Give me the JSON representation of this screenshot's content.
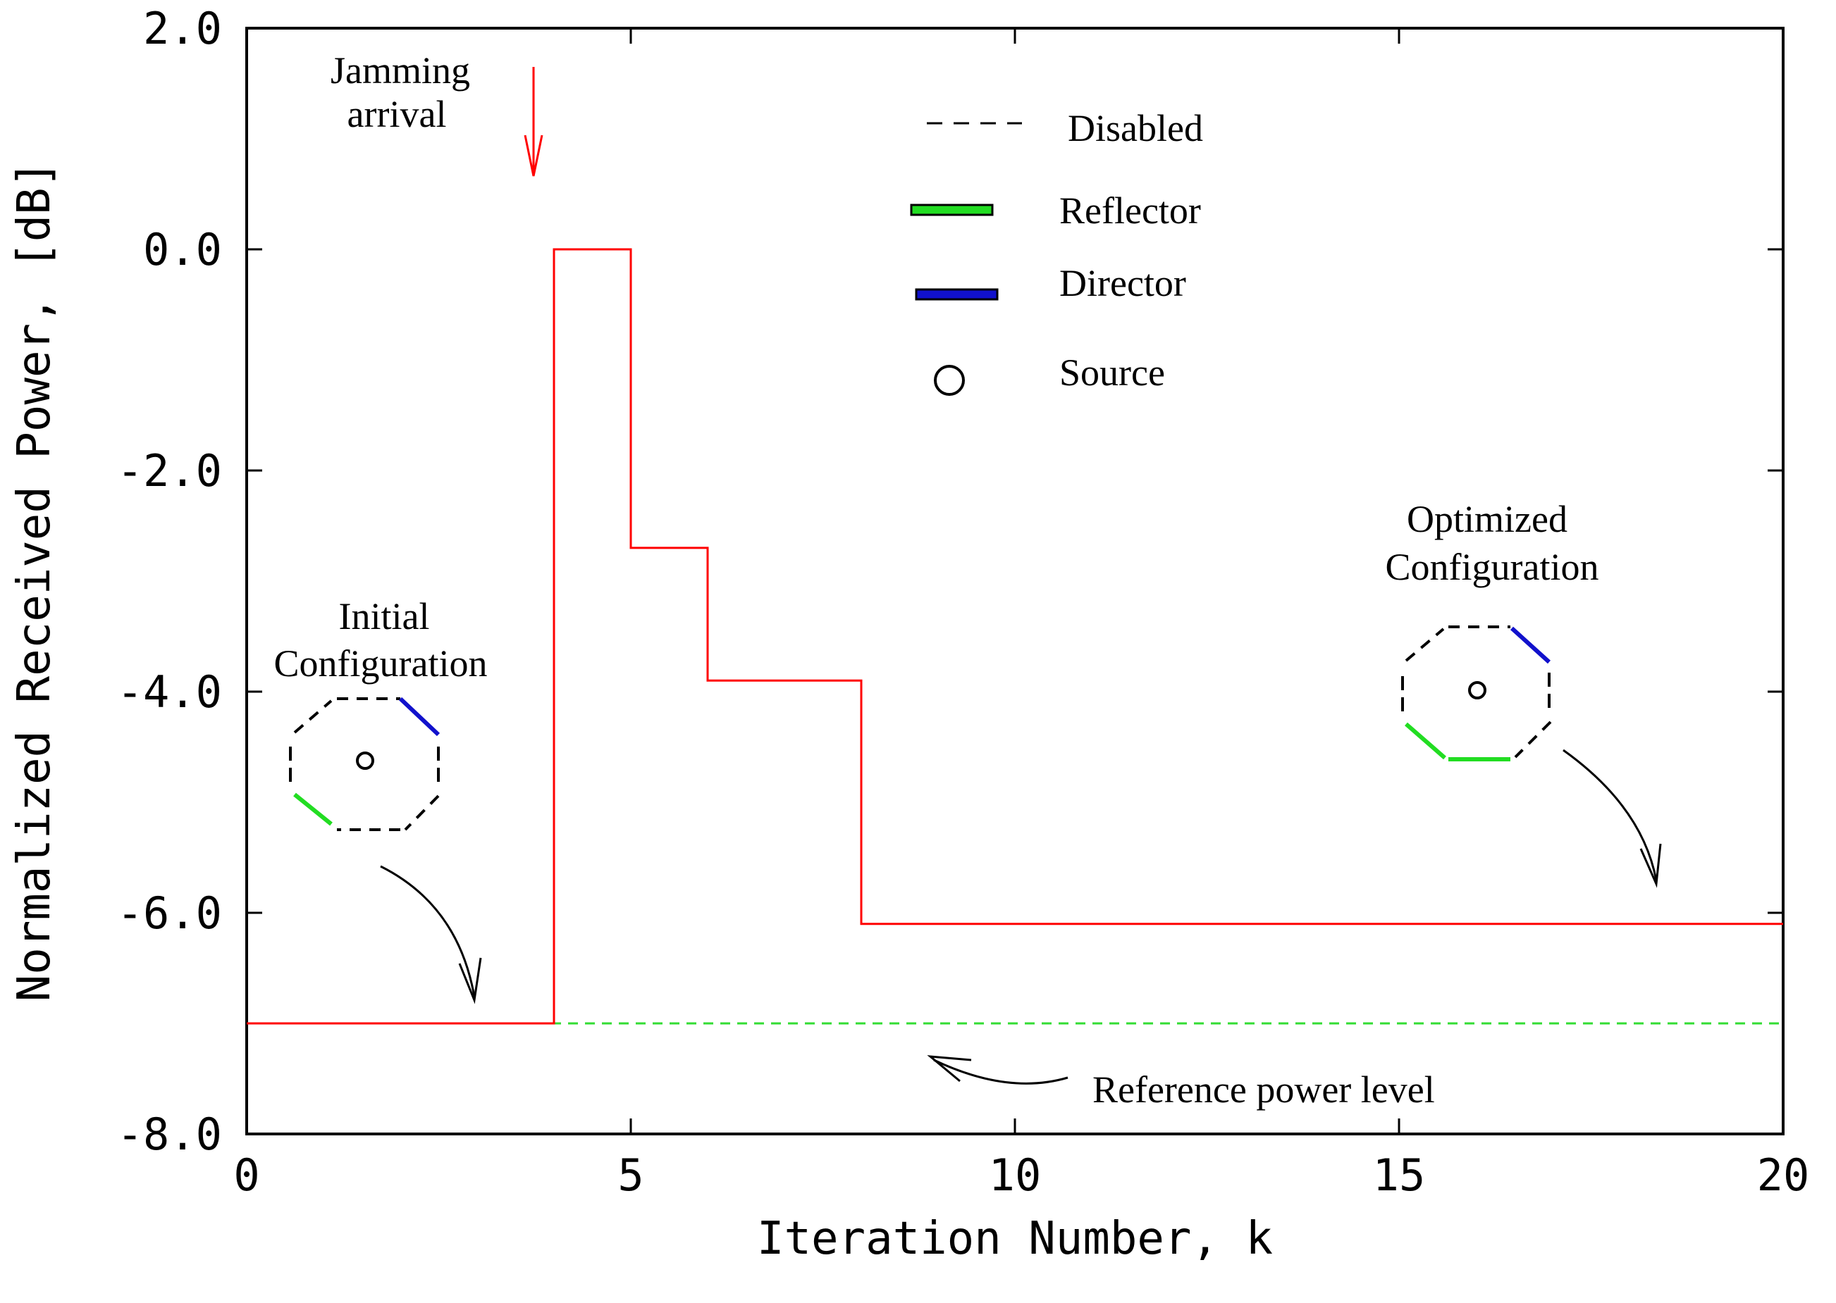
{
  "chart_data": {
    "type": "line",
    "title": "",
    "xlabel": "Iteration Number, k",
    "ylabel": "Normalized Received Power,  [dB]",
    "xlim": [
      0,
      20
    ],
    "ylim": [
      -8,
      2
    ],
    "grid": false,
    "x_ticks": [
      "0",
      "5",
      "10",
      "15",
      "20"
    ],
    "y_ticks": [
      "-8.0",
      "-6.0",
      "-4.0",
      "-2.0",
      "0.0",
      "2.0"
    ],
    "series": [
      {
        "color": "#ff0000",
        "style": "step",
        "x": [
          0,
          4,
          4,
          5,
          5,
          6,
          6,
          8,
          8,
          20
        ],
        "y": [
          -7.0,
          -7.0,
          0.0,
          0.0,
          -2.7,
          -2.7,
          -3.9,
          -3.9,
          -6.1,
          -6.1
        ]
      },
      {
        "color": "#33dd33",
        "style": "dashed",
        "x": [
          0,
          20
        ],
        "y": [
          -7.0,
          -7.0
        ]
      }
    ],
    "legend": {
      "placement": "top-center",
      "entries": [
        {
          "label": "Disabled",
          "symbol": "dashed-line",
          "color": "#000000"
        },
        {
          "label": "Reflector",
          "symbol": "thick-line",
          "color": "#22dd22"
        },
        {
          "label": "Director",
          "symbol": "thick-line",
          "color": "#1111cc"
        },
        {
          "label": "Source",
          "symbol": "circle",
          "color": "#000000"
        }
      ]
    },
    "annotations": {
      "jamming": [
        "Jamming",
        "arrival"
      ],
      "initial": [
        "Initial",
        "Configuration"
      ],
      "optimized": [
        "Optimized",
        "Configuration"
      ],
      "reference": "Reference power level"
    },
    "colors": {
      "axis": "#000000",
      "jamming_arrow": "#ff0000",
      "reflector": "#22dd22",
      "director": "#1111cc"
    }
  }
}
